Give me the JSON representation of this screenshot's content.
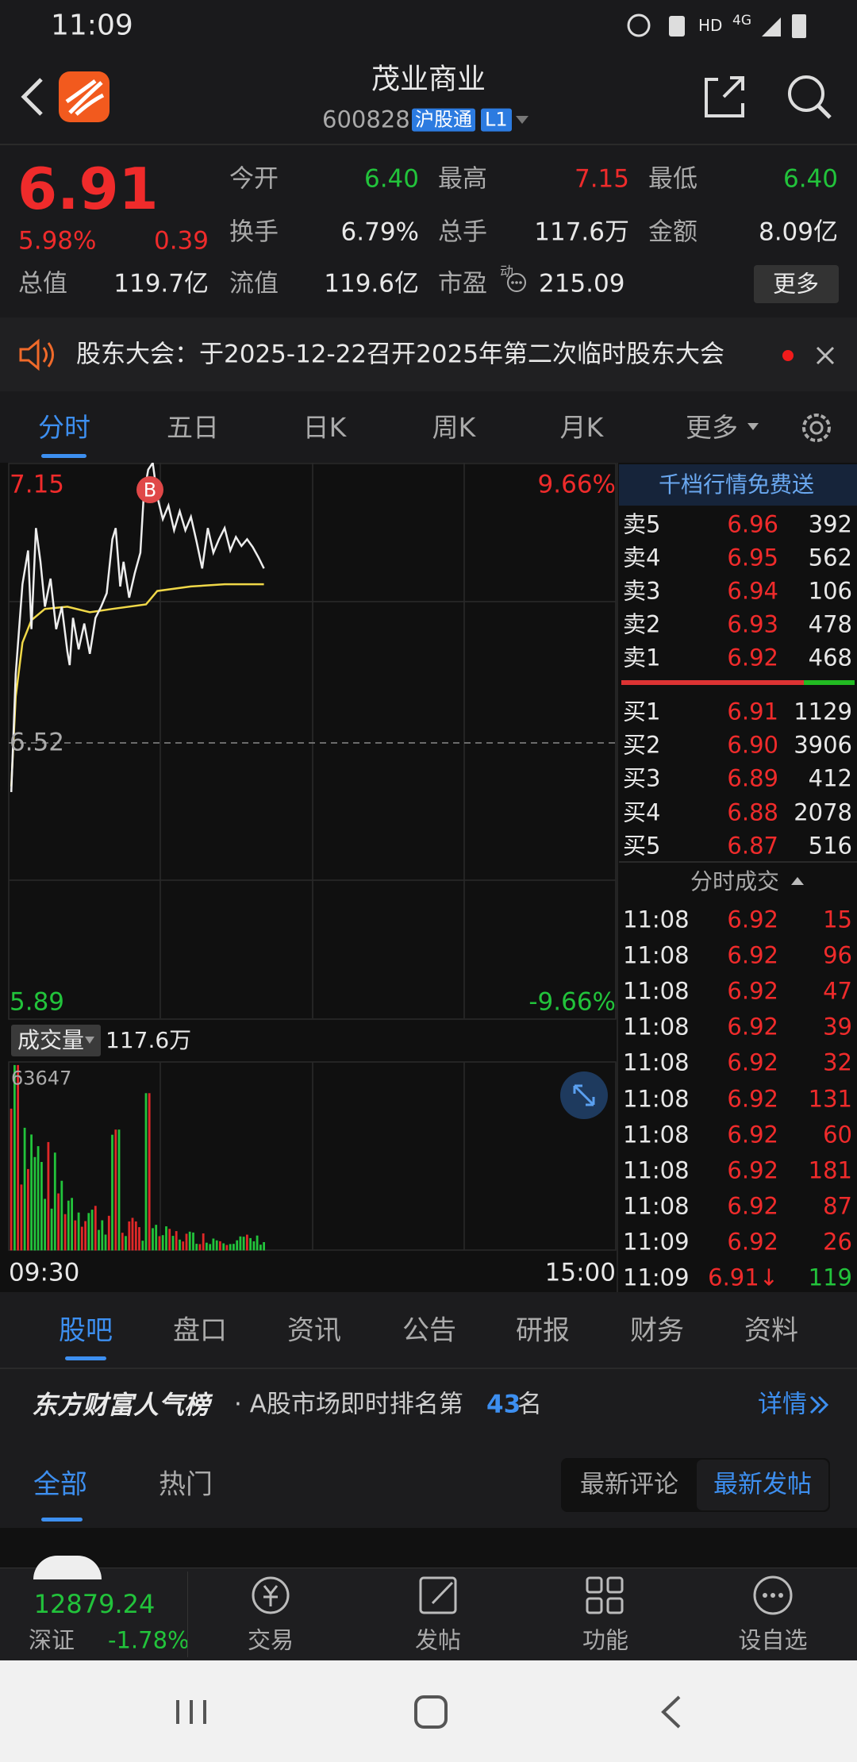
{
  "status": {
    "time": "11:09",
    "hd": "HD",
    "net": "4G"
  },
  "header": {
    "title": "茂业商业",
    "code": "600828",
    "badge": "沪股通",
    "level": "L1"
  },
  "quote": {
    "price": "6.91",
    "change_pct": "5.98%",
    "change": "0.39",
    "stats": [
      {
        "label": "今开",
        "value": "6.40"
      },
      {
        "label": "最高",
        "value": "7.15"
      },
      {
        "label": "最低",
        "value": "6.40"
      },
      {
        "label": "换手",
        "value": "6.79%"
      },
      {
        "label": "总手",
        "value": "117.6万"
      },
      {
        "label": "金额",
        "value": "8.09亿"
      },
      {
        "label": "总值",
        "value": "119.7亿"
      },
      {
        "label": "流值",
        "value": "119.6亿"
      },
      {
        "label": "市盈",
        "value": "215.09"
      }
    ],
    "more": "更多",
    "pe_tag": "动"
  },
  "notice": {
    "text": "股东大会：于2025-12-22召开2025年第二次临时股东大会"
  },
  "chart_tabs": [
    "分时",
    "五日",
    "日K",
    "周K",
    "月K",
    "更多"
  ],
  "chart": {
    "price_high": "7.15",
    "pct_high": "9.66%",
    "price_mid": "6.52",
    "price_low": "5.89",
    "pct_low": "-9.66%",
    "marker": "B",
    "volume_label": "成交量",
    "volume_total": "117.6万",
    "volume_max": "63647",
    "time_start": "09:30",
    "time_end": "15:00"
  },
  "order_book": {
    "promo": "千档行情免费送",
    "asks": [
      {
        "label": "卖5",
        "price": "6.96",
        "volume": "392"
      },
      {
        "label": "卖4",
        "price": "6.95",
        "volume": "562"
      },
      {
        "label": "卖3",
        "price": "6.94",
        "volume": "106"
      },
      {
        "label": "卖2",
        "price": "6.93",
        "volume": "478"
      },
      {
        "label": "卖1",
        "price": "6.92",
        "volume": "468"
      }
    ],
    "bids": [
      {
        "label": "买1",
        "price": "6.91",
        "volume": "1129"
      },
      {
        "label": "买2",
        "price": "6.90",
        "volume": "3906"
      },
      {
        "label": "买3",
        "price": "6.89",
        "volume": "412"
      },
      {
        "label": "买4",
        "price": "6.88",
        "volume": "2078"
      },
      {
        "label": "买5",
        "price": "6.87",
        "volume": "516"
      }
    ],
    "trades_title": "分时成交",
    "trades": [
      {
        "time": "11:08",
        "price": "6.92",
        "volume": "15"
      },
      {
        "time": "11:08",
        "price": "6.92",
        "volume": "96"
      },
      {
        "time": "11:08",
        "price": "6.92",
        "volume": "47"
      },
      {
        "time": "11:08",
        "price": "6.92",
        "volume": "39"
      },
      {
        "time": "11:08",
        "price": "6.92",
        "volume": "32"
      },
      {
        "time": "11:08",
        "price": "6.92",
        "volume": "131"
      },
      {
        "time": "11:08",
        "price": "6.92",
        "volume": "60"
      },
      {
        "time": "11:08",
        "price": "6.92",
        "volume": "181"
      },
      {
        "time": "11:08",
        "price": "6.92",
        "volume": "87"
      },
      {
        "time": "11:09",
        "price": "6.92",
        "volume": "26"
      },
      {
        "time": "11:09",
        "price": "6.91↓",
        "volume": "119"
      }
    ]
  },
  "section_tabs": [
    "股吧",
    "盘口",
    "资讯",
    "公告",
    "研报",
    "财务",
    "资料"
  ],
  "ranking": {
    "brand": "东方财富人气榜",
    "text": "· A股市场即时排名第",
    "rank": "43",
    "suffix": "名",
    "details": "详情"
  },
  "sub_tabs": [
    "全部",
    "热门"
  ],
  "sort": [
    "最新评论",
    "最新发帖"
  ],
  "bottom": {
    "index_value": "12879.24",
    "index_name": "深证",
    "index_change": "-1.78%",
    "nav": [
      "交易",
      "发帖",
      "功能",
      "设自选"
    ]
  }
}
